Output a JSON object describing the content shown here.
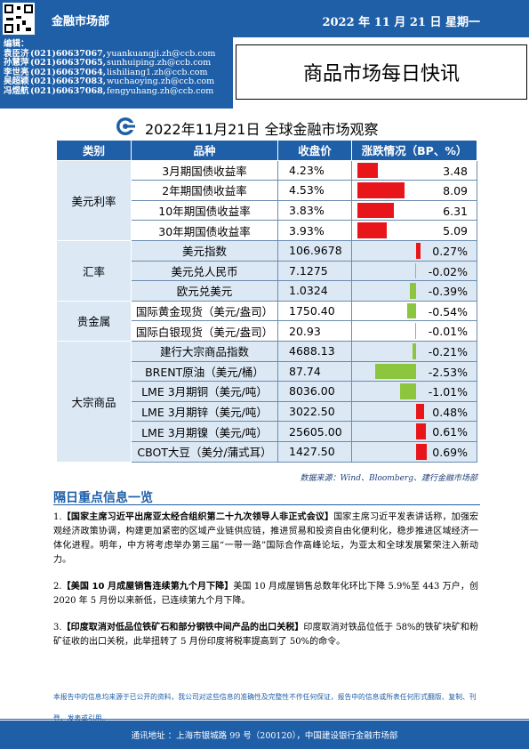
{
  "header": {
    "department": "金融市场部",
    "date": "2022 年 11 月 21 日  星期一"
  },
  "editors": {
    "label": "编辑：",
    "list": [
      {
        "name": "袁臣济",
        "phone": "(021)60637067,",
        "email": "yuankuangji.zh@ccb.com"
      },
      {
        "name": "孙慧萍",
        "phone": "(021)60637065,",
        "email": "sunhuiping.zh@ccb.com"
      },
      {
        "name": "李世亮",
        "phone": "(021)60637064,",
        "email": "lishiliang1.zh@ccb.com"
      },
      {
        "name": "吴超颖",
        "phone": "(021)60637083,",
        "email": "wuchaoying.zh@ccb.com"
      },
      {
        "name": "冯煜航",
        "phone": "(021)60637068,",
        "email": "fengyuhang.zh@ccb.com"
      }
    ]
  },
  "title": "商品市场每日快讯",
  "subtitle": "2022年11月21日 全球金融市场观察",
  "table": {
    "headers": [
      "类别",
      "品种",
      "收盘价",
      "涨跌情况（BP、%）"
    ],
    "groups": [
      {
        "category": "美元利率",
        "rows": [
          {
            "item": "3月期国债收益率",
            "close": "4.23%",
            "change": "3.48",
            "value": 3.48
          },
          {
            "item": "2年期国债收益率",
            "close": "4.53%",
            "change": "8.09",
            "value": 8.09
          },
          {
            "item": "10年期国债收益率",
            "close": "3.83%",
            "change": "6.31",
            "value": 6.31
          },
          {
            "item": "30年期国债收益率",
            "close": "3.93%",
            "change": "5.09",
            "value": 5.09
          }
        ]
      },
      {
        "category": "汇率",
        "rows": [
          {
            "item": "美元指数",
            "close": "106.9678",
            "change": "0.27%",
            "value": 0.27
          },
          {
            "item": "美元兑人民币",
            "close": "7.1275",
            "change": "-0.02%",
            "value": -0.02
          },
          {
            "item": "欧元兑美元",
            "close": "1.0324",
            "change": "-0.39%",
            "value": -0.39
          }
        ]
      },
      {
        "category": "贵金属",
        "rows": [
          {
            "item": "国际黄金现货（美元/盎司）",
            "close": "1750.40",
            "change": "-0.54%",
            "value": -0.54
          },
          {
            "item": "国际白银现货（美元/盎司）",
            "close": "20.93",
            "change": "-0.01%",
            "value": -0.01
          }
        ]
      },
      {
        "category": "大宗商品",
        "rows": [
          {
            "item": "建行大宗商品指数",
            "close": "4688.13",
            "change": "-0.21%",
            "value": -0.21
          },
          {
            "item": "BRENT原油（美元/桶）",
            "close": "87.74",
            "change": "-2.53%",
            "value": -2.53
          },
          {
            "item": "LME 3月期铜（美元/吨）",
            "close": "8036.00",
            "change": "-1.01%",
            "value": -1.01
          },
          {
            "item": "LME 3月期锌（美元/吨）",
            "close": "3022.50",
            "change": "0.48%",
            "value": 0.48
          },
          {
            "item": "LME 3月期镍（美元/吨）",
            "close": "25605.00",
            "change": "0.61%",
            "value": 0.61
          },
          {
            "item": "CBOT大豆（美分/蒲式耳）",
            "close": "1427.50",
            "change": "0.69%",
            "value": 0.69
          }
        ]
      }
    ],
    "colors": {
      "up": "#e8161b",
      "down": "#8cc63f"
    }
  },
  "source": "数据来源：Wind、Bloomberg、建行金融市场部",
  "section_title": "隔日重点信息一览",
  "news": [
    {
      "num": "1.",
      "head": "【国家主席习近平出席亚太经合组织第二十九次领导人非正式会议】",
      "body": "国家主席习近平发表讲话称，加强宏观经济政策协调，构建更加紧密的区域产业链供应链，推进贸易和投资自由化便利化，稳步推进区域经济一体化进程。明年，中方将考虑举办第三届“一带一路”国际合作高峰论坛，为亚太和全球发展繁荣注入新动力。"
    },
    {
      "num": "2.",
      "head": "【美国 10 月成屋销售连续第九个月下降】",
      "body": "美国 10 月成屋销售总数年化环比下降 5.9%至 443 万户，创 2020 年 5 月份以来新低，已连续第九个月下降。"
    },
    {
      "num": "3.",
      "head": "【印度取消对低品位铁矿石和部分钢铁中间产品的出口关税】",
      "body": "印度取消对铁品位低于 58%的铁矿块矿和粉矿征收的出口关税，此举扭转了 5 月份印度将税率提高到了 50%的命令。"
    }
  ],
  "disclaimer": "本报告中的信息均来源于已公开的资料，我公司对这些信息的准确性及完整性不作任何保证，报告中的信息或所表任何形式翻版、复制、刊登、发表或引用。",
  "footer": "通讯地址 ：上海市银城路 99 号（200120），中国建设银行金融市场部"
}
